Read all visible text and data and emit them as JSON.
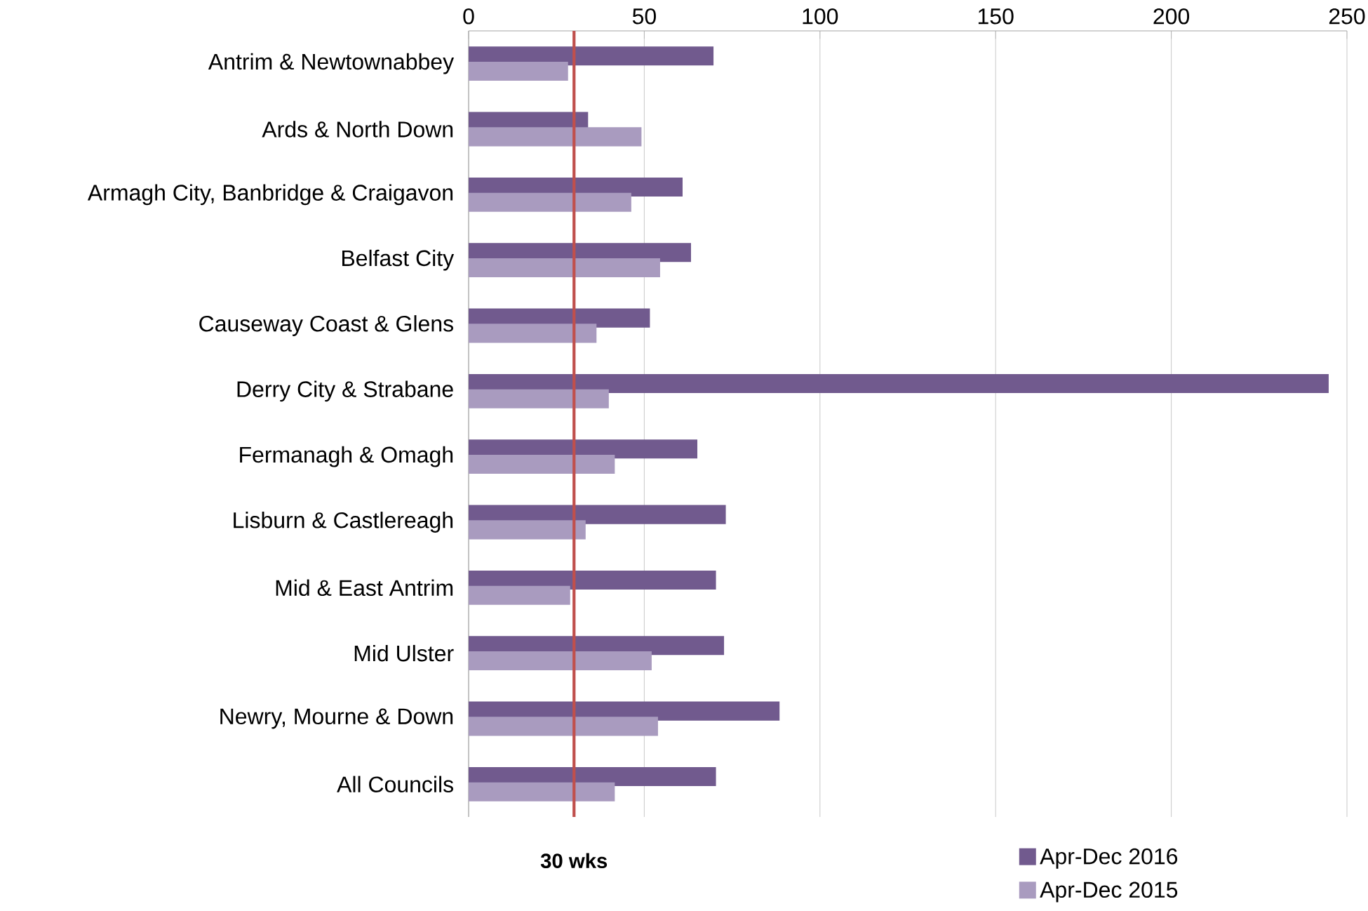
{
  "chart_data": {
    "type": "bar",
    "orientation": "horizontal",
    "categories": [
      "Antrim & Newtownabbey",
      "Ards & North Down",
      "Armagh City, Banbridge & Craigavon",
      "Belfast City",
      "Causeway Coast & Glens",
      "Derry City & Strabane",
      "Fermanagh & Omagh",
      "Lisburn & Castlereagh",
      "Mid & East Antrim",
      "Mid Ulster",
      "Newry, Mourne & Down",
      "All Councils"
    ],
    "series": [
      {
        "name": "Apr-Dec 2016",
        "color": "#715a8e",
        "values": [
          69.7,
          34,
          60.9,
          63.3,
          51.6,
          244.8,
          65.1,
          73.2,
          70.4,
          72.7,
          88.5,
          70.4
        ]
      },
      {
        "name": "Apr-Dec 2015",
        "color": "#a99bbf",
        "values": [
          28.3,
          49.2,
          46.3,
          54.5,
          36.4,
          39.9,
          41.6,
          33.3,
          28.9,
          52.1,
          53.9,
          41.6
        ]
      }
    ],
    "xlim": [
      0,
      250
    ],
    "xticks": [
      0,
      50,
      100,
      150,
      200,
      250
    ],
    "grid": "x",
    "legend": "bottom right",
    "ref_lines": [
      {
        "axis": "x",
        "value": 30,
        "label": "30 wks",
        "color": "#c0504d"
      }
    ]
  }
}
